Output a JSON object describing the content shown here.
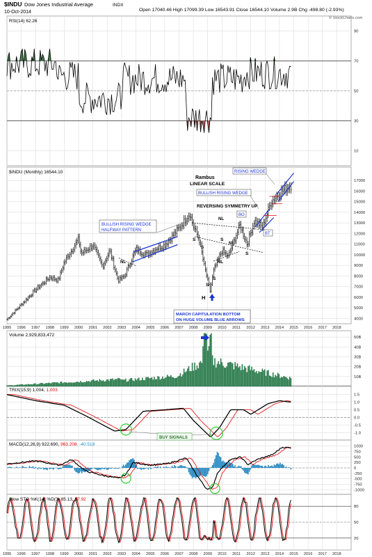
{
  "header": {
    "symbol": "$INDU",
    "name": "Dow Jones Industrial Average",
    "exchange": "INDX",
    "date": "10-Oct-2014",
    "quote": "Open 17040.46   High 17099.39   Low 16543.91   Close 16544.10   Volume 2.9B   Chg -498.80 (-2.93%)",
    "watermark": "© StockCharts.com",
    "down_symbol": "▼"
  },
  "colors": {
    "price": "#000000",
    "signal": "#e00000",
    "volume": "#2e7d4f",
    "rsi_overbought": "#4a7a52",
    "rsi_oversold": "#b06060",
    "trendline": "#1a35d4",
    "circle": "#33cc33",
    "annotation": "#1a35d4",
    "grid": "#d6d6d6"
  },
  "years": [
    "1995",
    "1996",
    "1997",
    "1998",
    "1999",
    "2000",
    "2001",
    "2002",
    "2003",
    "2004",
    "2005",
    "2006",
    "2007",
    "2008",
    "2009",
    "2010",
    "2011",
    "2012",
    "2013",
    "2014",
    "2015",
    "2016",
    "2017",
    "2018"
  ],
  "panels": {
    "rsi": {
      "label": "RSI(14) 62.26",
      "ticks": [
        "90",
        "70",
        "50",
        "30",
        "10"
      ]
    },
    "price": {
      "label": "$INDU (Monthly) 16544.10",
      "ticks": [
        "17000",
        "16000",
        "15000",
        "14000",
        "13000",
        "12000",
        "11000",
        "10000",
        "9000",
        "8000",
        "7000",
        "6000",
        "5000",
        "4000"
      ]
    },
    "volume": {
      "label": "Volume 2,929,833,472",
      "ticks": [
        "50B",
        "40B",
        "30B",
        "20B",
        "10B"
      ]
    },
    "trix": {
      "label": "TRIX(15,9) 1.004, ",
      "signal_value": "1.003",
      "ticks": [
        "1.5",
        "1.0",
        "0.5",
        "0.0",
        "-0.5",
        "-1.0"
      ]
    },
    "macd": {
      "label": "MACD(12,26,9) 922.690, ",
      "signal_value": "963.208",
      "hist_value": ", -40.518",
      "ticks": [
        "1000",
        "750",
        "500",
        "250",
        "0",
        "-250",
        "-500",
        "-750",
        "-1000"
      ]
    },
    "sto": {
      "label": "Slow STO %K(14) %D(3) 85.13, ",
      "signal_value": "87.92",
      "ticks": [
        "80",
        "50",
        "20"
      ]
    }
  },
  "annotations": {
    "rambus": "Rambus",
    "linear_scale": "LINEAR SCALE",
    "bullish_rising_wedge_halfway_1": "BULLISH RISING WEDGE",
    "bullish_rising_wedge_halfway_2": "HALFWAY PATTERN",
    "rising_wedge": "RISING WEDGE",
    "bullish_rising_wedge": "BULLISH RISING WEDGE",
    "reversing_symmetry": "REVERSING SYMMETRY UP",
    "nl": "NL",
    "bo": "BO",
    "bt": "BT",
    "s": "S",
    "h": "H",
    "capitulation_1": "MARCH CAPITULATION BOTTOM",
    "capitulation_2": "ON HUGE VOLUME BLUE ARROWS",
    "buy_signals": "BUY SIGNALS"
  },
  "chart_data": {
    "type": "line",
    "title": "$INDU Dow Jones Industrial Average (Monthly)",
    "x_range": [
      "1995-01",
      "2018-12"
    ],
    "series": [
      {
        "name": "$INDU (Monthly)",
        "x": [
          "1995-01",
          "1996-01",
          "1997-01",
          "1998-01",
          "1998-08",
          "1999-01",
          "2000-01",
          "2000-03",
          "2001-01",
          "2001-09",
          "2002-03",
          "2002-10",
          "2003-03",
          "2004-01",
          "2004-10",
          "2005-06",
          "2006-01",
          "2007-01",
          "2007-10",
          "2008-01",
          "2008-06",
          "2008-10",
          "2009-03",
          "2009-06",
          "2010-01",
          "2010-06",
          "2011-04",
          "2011-10",
          "2012-04",
          "2012-11",
          "2013-06",
          "2014-01",
          "2014-10"
        ],
        "values": [
          3900,
          5300,
          6700,
          7900,
          7600,
          9300,
          11500,
          10100,
          10900,
          8900,
          10400,
          7600,
          7900,
          10500,
          10000,
          10600,
          10900,
          12500,
          13900,
          12700,
          11400,
          9000,
          6600,
          8500,
          10400,
          9800,
          12800,
          11000,
          13200,
          12600,
          15000,
          15800,
          16544
        ]
      }
    ],
    "ylim": [
      3500,
      17500
    ],
    "panels": {
      "rsi_14_last": 62.26,
      "volume_last": 2929833472,
      "trix_15_9": [
        1.004,
        1.003
      ],
      "macd_12_26_9": [
        922.69,
        963.208,
        -40.518
      ],
      "slow_sto_14_3": [
        85.13,
        87.92
      ]
    }
  }
}
